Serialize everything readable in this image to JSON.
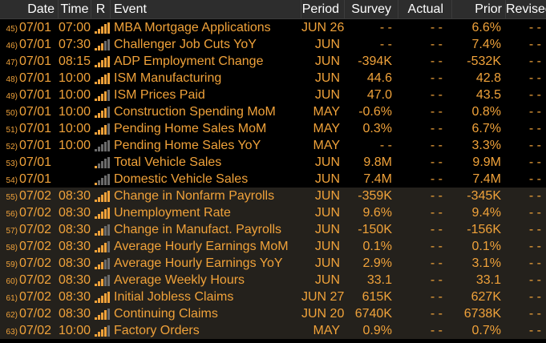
{
  "header": {
    "date": "Date",
    "time": "Time",
    "r": "R",
    "event": "Event",
    "period": "Period",
    "survey": "Survey",
    "actual": "Actual",
    "prior": "Prior",
    "revised": "Revised"
  },
  "rows": [
    {
      "idx": "45)",
      "date": "07/01",
      "time": "07:00",
      "rel": 5,
      "event": "MBA Mortgage Applications",
      "period": "JUN 26",
      "survey": "- -",
      "actual": "- -",
      "prior": "6.6%",
      "revised": "- -",
      "group": "a"
    },
    {
      "idx": "46)",
      "date": "07/01",
      "time": "07:30",
      "rel": 3,
      "event": "Challenger Job Cuts YoY",
      "period": "JUN",
      "survey": "- -",
      "actual": "- -",
      "prior": "7.4%",
      "revised": "- -",
      "group": "a"
    },
    {
      "idx": "47)",
      "date": "07/01",
      "time": "08:15",
      "rel": 5,
      "event": "ADP Employment Change",
      "period": "JUN",
      "survey": "-394K",
      "actual": "- -",
      "prior": "-532K",
      "revised": "- -",
      "group": "a"
    },
    {
      "idx": "48)",
      "date": "07/01",
      "time": "10:00",
      "rel": 5,
      "event": "ISM Manufacturing",
      "period": "JUN",
      "survey": "44.6",
      "actual": "- -",
      "prior": "42.8",
      "revised": "- -",
      "group": "a"
    },
    {
      "idx": "49)",
      "date": "07/01",
      "time": "10:00",
      "rel": 4,
      "event": "ISM Prices Paid",
      "period": "JUN",
      "survey": "47.0",
      "actual": "- -",
      "prior": "43.5",
      "revised": "- -",
      "group": "a"
    },
    {
      "idx": "50)",
      "date": "07/01",
      "time": "10:00",
      "rel": 4,
      "event": "Construction Spending MoM",
      "period": "MAY",
      "survey": "-0.6%",
      "actual": "- -",
      "prior": "0.8%",
      "revised": "- -",
      "group": "a"
    },
    {
      "idx": "51)",
      "date": "07/01",
      "time": "10:00",
      "rel": 4,
      "event": "Pending Home Sales MoM",
      "period": "MAY",
      "survey": "0.3%",
      "actual": "- -",
      "prior": "6.7%",
      "revised": "- -",
      "group": "a"
    },
    {
      "idx": "52)",
      "date": "07/01",
      "time": "10:00",
      "rel": 0,
      "event": "Pending Home Sales YoY",
      "period": "MAY",
      "survey": "- -",
      "actual": "- -",
      "prior": "3.3%",
      "revised": "- -",
      "group": "a"
    },
    {
      "idx": "53)",
      "date": "07/01",
      "time": "",
      "rel": 1,
      "event": "Total Vehicle Sales",
      "period": "JUN",
      "survey": "9.8M",
      "actual": "- -",
      "prior": "9.9M",
      "revised": "- -",
      "group": "a"
    },
    {
      "idx": "54)",
      "date": "07/01",
      "time": "",
      "rel": 1,
      "event": "Domestic Vehicle Sales",
      "period": "JUN",
      "survey": "7.4M",
      "actual": "- -",
      "prior": "7.4M",
      "revised": "- -",
      "group": "a"
    },
    {
      "idx": "55)",
      "date": "07/02",
      "time": "08:30",
      "rel": 5,
      "event": "Change in Nonfarm Payrolls",
      "period": "JUN",
      "survey": "-359K",
      "actual": "- -",
      "prior": "-345K",
      "revised": "- -",
      "group": "b"
    },
    {
      "idx": "56)",
      "date": "07/02",
      "time": "08:30",
      "rel": 5,
      "event": "Unemployment Rate",
      "period": "JUN",
      "survey": "9.6%",
      "actual": "- -",
      "prior": "9.4%",
      "revised": "- -",
      "group": "b"
    },
    {
      "idx": "57)",
      "date": "07/02",
      "time": "08:30",
      "rel": 3,
      "event": "Change in Manufact. Payrolls",
      "period": "JUN",
      "survey": "-150K",
      "actual": "- -",
      "prior": "-156K",
      "revised": "- -",
      "group": "b"
    },
    {
      "idx": "58)",
      "date": "07/02",
      "time": "08:30",
      "rel": 4,
      "event": "Average Hourly Earnings MoM",
      "period": "JUN",
      "survey": "0.1%",
      "actual": "- -",
      "prior": "0.1%",
      "revised": "- -",
      "group": "b"
    },
    {
      "idx": "59)",
      "date": "07/02",
      "time": "08:30",
      "rel": 3,
      "event": "Average Hourly Earnings YoY",
      "period": "JUN",
      "survey": "2.9%",
      "actual": "- -",
      "prior": "3.1%",
      "revised": "- -",
      "group": "b"
    },
    {
      "idx": "60)",
      "date": "07/02",
      "time": "08:30",
      "rel": 3,
      "event": "Average Weekly Hours",
      "period": "JUN",
      "survey": "33.1",
      "actual": "- -",
      "prior": "33.1",
      "revised": "- -",
      "group": "b"
    },
    {
      "idx": "61)",
      "date": "07/02",
      "time": "08:30",
      "rel": 5,
      "event": "Initial Jobless Claims",
      "period": "JUN 27",
      "survey": "615K",
      "actual": "- -",
      "prior": "627K",
      "revised": "- -",
      "group": "b"
    },
    {
      "idx": "62)",
      "date": "07/02",
      "time": "08:30",
      "rel": 4,
      "event": "Continuing Claims",
      "period": "JUN 20",
      "survey": "6740K",
      "actual": "- -",
      "prior": "6738K",
      "revised": "- -",
      "group": "b"
    },
    {
      "idx": "63)",
      "date": "07/02",
      "time": "10:00",
      "rel": 4,
      "event": "Factory Orders",
      "period": "MAY",
      "survey": "0.9%",
      "actual": "- -",
      "prior": "0.7%",
      "revised": "- -",
      "group": "b"
    }
  ],
  "colors": {
    "amber": "#f0a23a",
    "header_bg": "#2d2d2d",
    "header_text": "#ffffff",
    "group_b_bg": "#24211c",
    "dim_bar": "#6b6b6b"
  },
  "icons": {
    "relevance": "relevance-bars-icon"
  }
}
